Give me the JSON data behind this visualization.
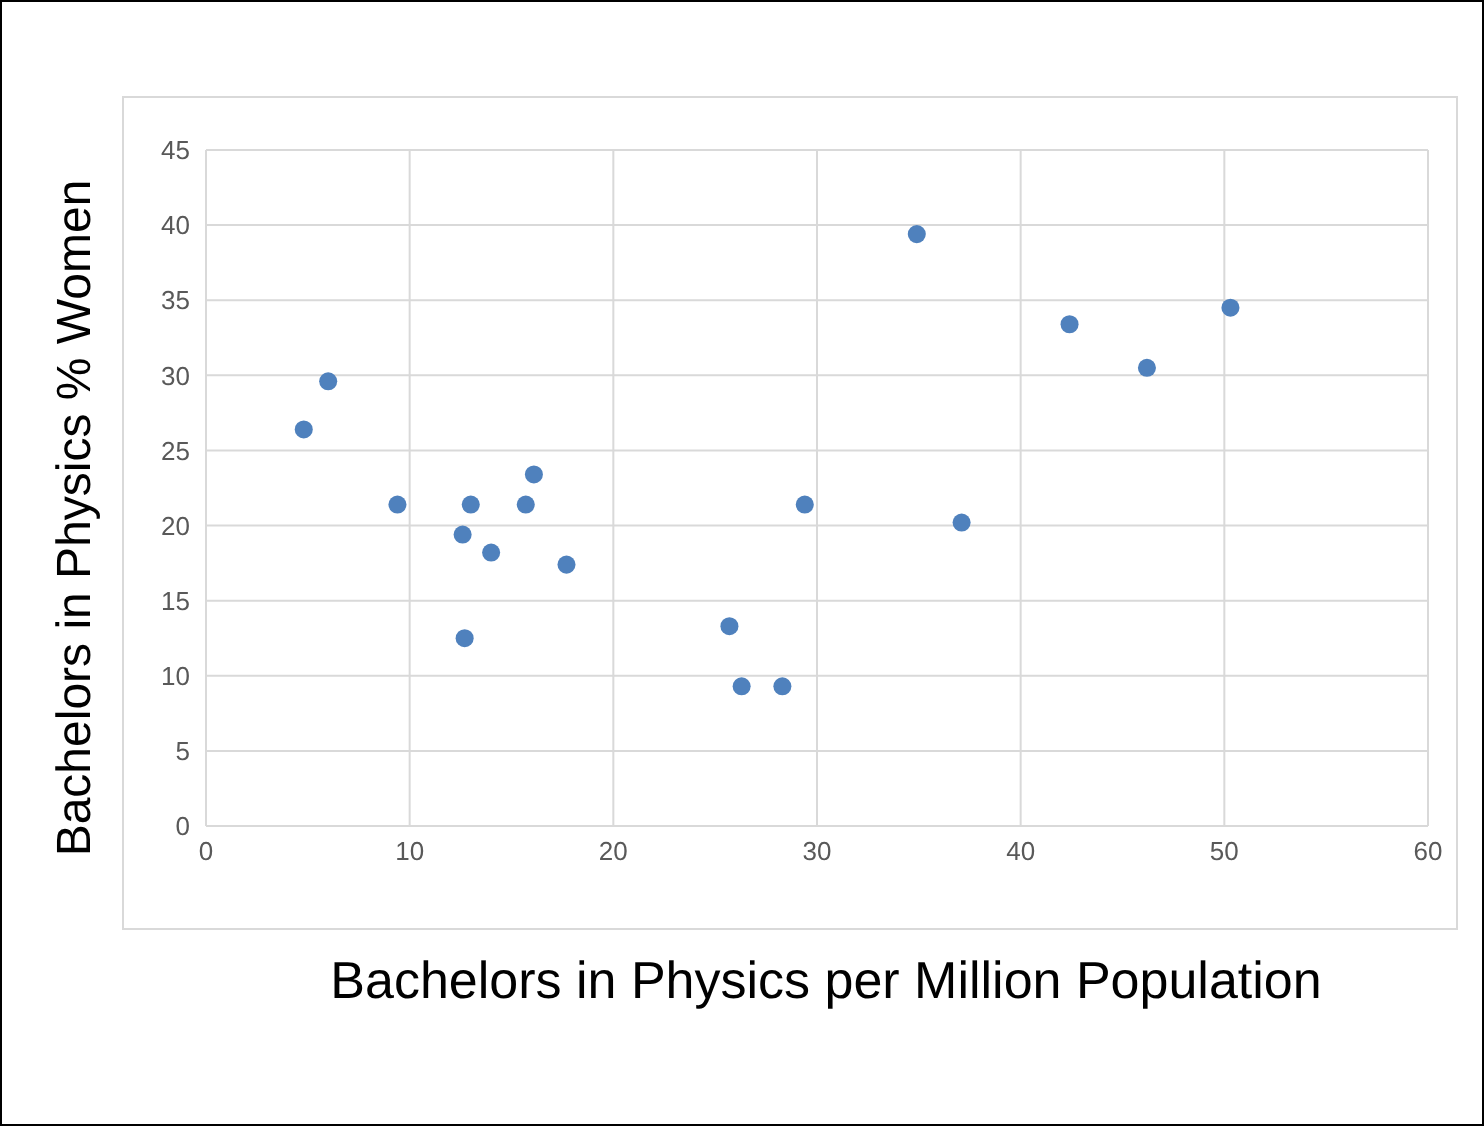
{
  "chart_data": {
    "type": "scatter",
    "xlabel": "Bachelors in Physics per Million Population",
    "ylabel": "Bachelors in Physics % Women",
    "x": [
      4.8,
      6.0,
      9.4,
      12.6,
      13.0,
      12.7,
      14.0,
      15.7,
      16.1,
      17.7,
      25.7,
      26.3,
      28.3,
      29.4,
      34.9,
      37.1,
      42.4,
      46.2,
      50.3
    ],
    "series": [
      {
        "color": "#4f81bd",
        "values": [
          26.4,
          29.6,
          21.4,
          19.4,
          21.4,
          12.5,
          18.2,
          21.4,
          23.4,
          17.4,
          13.3,
          9.3,
          9.3,
          21.4,
          39.4,
          20.2,
          33.4,
          30.5,
          34.5
        ]
      }
    ],
    "xlim": [
      0,
      60
    ],
    "xticks": [
      0,
      10,
      20,
      30,
      40,
      50,
      60
    ],
    "ylim": [
      0,
      45
    ],
    "yticks": [
      0,
      5,
      10,
      15,
      20,
      25,
      30,
      35,
      40,
      45
    ],
    "grid": true,
    "marker": "circle"
  }
}
